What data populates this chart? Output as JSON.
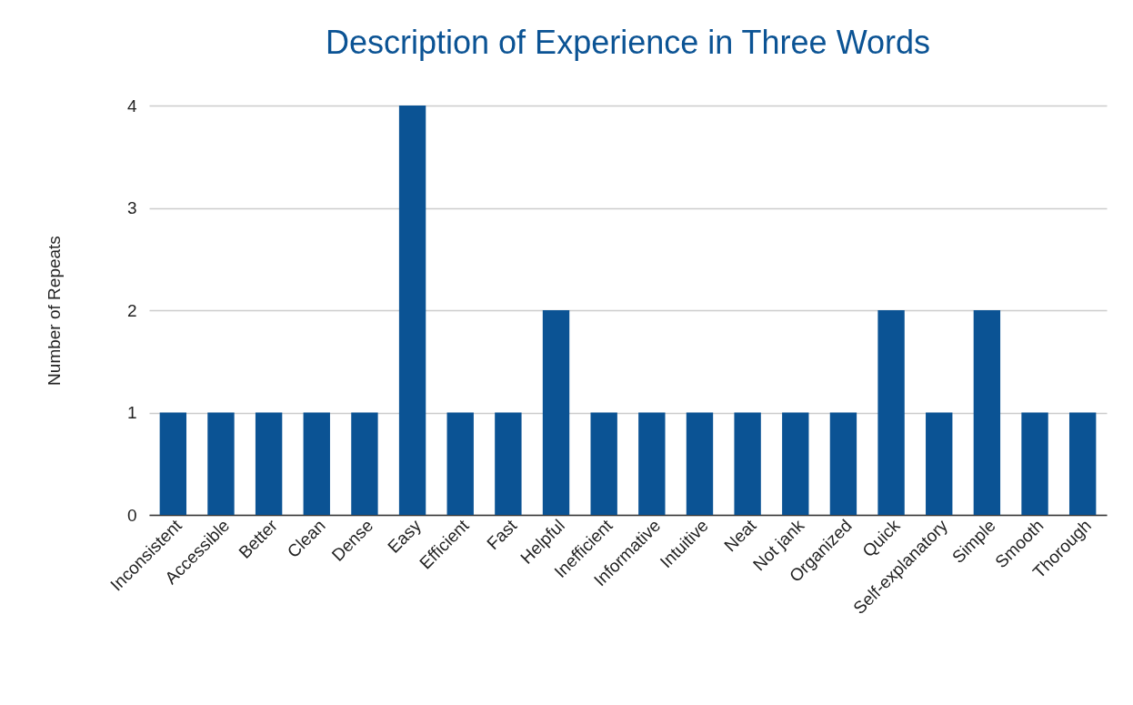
{
  "chart_data": {
    "type": "bar",
    "title": "Description of Experience in Three Words",
    "ylabel": "Number of Repeats",
    "categories": [
      "Inconsistent",
      "Accessible",
      "Better",
      "Clean",
      "Dense",
      "Easy",
      "Efficient",
      "Fast",
      "Helpful",
      "Inefficient",
      "Informative",
      "Intuitive",
      "Neat",
      "Not jank",
      "Organized",
      "Quick",
      "Self-explanatory",
      "Simple",
      "Smooth",
      "Thorough"
    ],
    "values": [
      1,
      1,
      1,
      1,
      1,
      4,
      1,
      1,
      2,
      1,
      1,
      1,
      1,
      1,
      1,
      2,
      1,
      2,
      1,
      1
    ],
    "color": "#0b5394",
    "ylim": [
      0,
      4
    ],
    "yticks": [
      0,
      1,
      2,
      3,
      4
    ],
    "grid": "y"
  }
}
